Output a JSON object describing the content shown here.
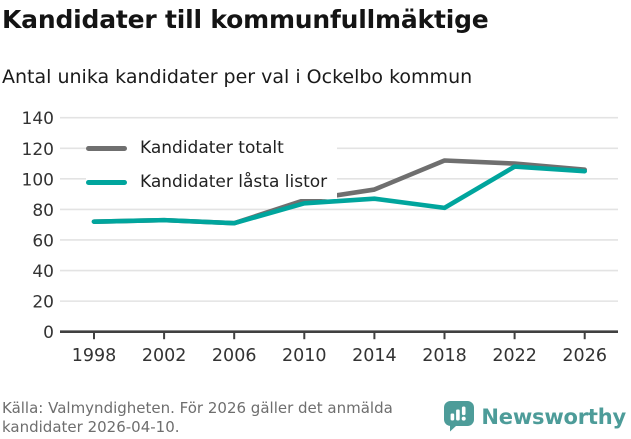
{
  "header": {
    "title": "Kandidater till kommunfullmäktige",
    "subtitle": "Antal unika kandidater per val i Ockelbo kommun"
  },
  "chart_data": {
    "type": "line",
    "title": "Kandidater till kommunfullmäktige",
    "subtitle": "Antal unika kandidater per val i Ockelbo kommun",
    "categories": [
      1998,
      2002,
      2006,
      2010,
      2014,
      2018,
      2022,
      2026
    ],
    "series": [
      {
        "name": "Kandidater totalt",
        "color": "#6f6f6f",
        "values": [
          72,
          73,
          71,
          86,
          93,
          112,
          110,
          106
        ]
      },
      {
        "name": "Kandidater låsta listor",
        "color": "#00a59d",
        "values": [
          72,
          73,
          71,
          84,
          87,
          81,
          108,
          105
        ]
      }
    ],
    "xlabel": "",
    "ylabel": "",
    "ylim": [
      0,
      140
    ],
    "yticks": [
      0,
      20,
      40,
      60,
      80,
      100,
      120,
      140
    ],
    "grid": "horizontal",
    "legend_position": "top-left"
  },
  "colors": {
    "axis": "#404040",
    "grid": "#e3e3e3",
    "tick_label": "#333333"
  },
  "footer": {
    "source_lines": [
      "Källa: Valmyndigheten. För 2026 gäller det anmälda",
      "kandidater 2026-04-10."
    ],
    "logo_text": "Newsworthy",
    "logo_color": "#4d9c99"
  }
}
